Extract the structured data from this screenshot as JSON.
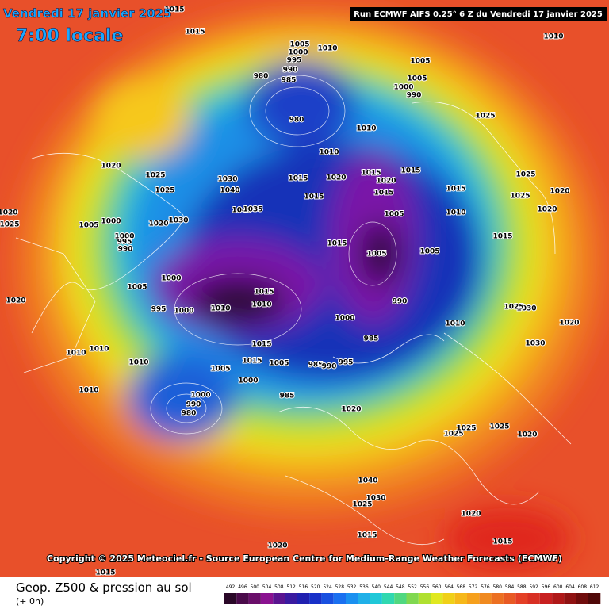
{
  "header": {
    "date": "Vendredi 17 janvier 2025",
    "time": "7:00 locale",
    "run": "Run ECMWF AIFS 0.25° 6 Z du Vendredi 17 janvier 2025"
  },
  "copyright": "Copyright © 2025 Meteociel.fr - Source European Centre for Medium-Range Weather Forecasts (ECMWF)",
  "footer": {
    "title": "Geop. Z500 & pression au sol",
    "lead": "(+ 0h)"
  },
  "colorbar": {
    "ticks": [
      492,
      496,
      500,
      504,
      508,
      512,
      516,
      520,
      524,
      528,
      532,
      536,
      540,
      544,
      548,
      552,
      556,
      560,
      564,
      568,
      572,
      576,
      580,
      584,
      588,
      592,
      596,
      600,
      604,
      608,
      612
    ]
  },
  "isobar_labels": [
    "1015",
    "1015",
    "1010",
    "1005",
    "1010",
    "1000",
    "995",
    "990",
    "980",
    "985",
    "1005",
    "1005",
    "1000",
    "990",
    "980",
    "1010",
    "1025",
    "1010",
    "1015",
    "1020",
    "1025",
    "1015",
    "1020",
    "1015",
    "1020",
    "1025",
    "1015",
    "1025",
    "1030",
    "1040",
    "1015",
    "1015",
    "1025",
    "1020",
    "1020",
    "1025",
    "1005",
    "1000",
    "1020",
    "1030",
    "1040",
    "1035",
    "1005",
    "1010",
    "1020",
    "1000",
    "995",
    "990",
    "1015",
    "1005",
    "1005",
    "1015",
    "1000",
    "1005",
    "1015",
    "1010",
    "1010",
    "995",
    "1000",
    "990",
    "1000",
    "1010",
    "1020",
    "985",
    "1015",
    "1010",
    "1010",
    "1010",
    "1005",
    "1015",
    "1005",
    "985",
    "990",
    "995",
    "1000",
    "1010",
    "985",
    "1000",
    "990",
    "980",
    "1020",
    "1025",
    "1025",
    "1025",
    "1020",
    "1040",
    "1030",
    "1025",
    "1020",
    "1015",
    "1015",
    "1020",
    "1015",
    "1020",
    "1030",
    "1020",
    "1030",
    "1025"
  ]
}
